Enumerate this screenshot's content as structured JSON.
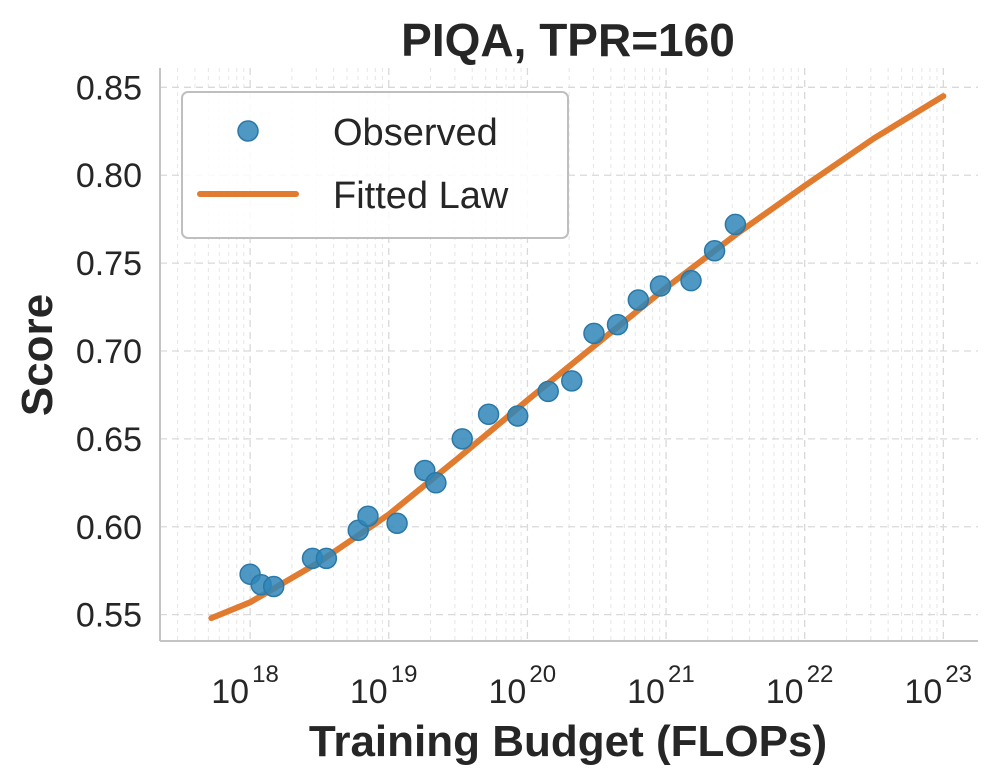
{
  "chart_data": {
    "type": "scatter",
    "title": "PIQA, TPR=160",
    "xlabel": "Training Budget (FLOPs)",
    "ylabel": "Score",
    "xscale": "log",
    "xlim_log10": [
      17.35,
      23.25
    ],
    "ylim": [
      0.535,
      0.861
    ],
    "xticks": [
      {
        "base": "10",
        "exp": "18",
        "log10": 18
      },
      {
        "base": "10",
        "exp": "19",
        "log10": 19
      },
      {
        "base": "10",
        "exp": "20",
        "log10": 20
      },
      {
        "base": "10",
        "exp": "21",
        "log10": 21
      },
      {
        "base": "10",
        "exp": "22",
        "log10": 22
      },
      {
        "base": "10",
        "exp": "23",
        "log10": 23
      }
    ],
    "yticks": [
      {
        "value": 0.55,
        "label": "0.55"
      },
      {
        "value": 0.6,
        "label": "0.60"
      },
      {
        "value": 0.65,
        "label": "0.65"
      },
      {
        "value": 0.7,
        "label": "0.70"
      },
      {
        "value": 0.75,
        "label": "0.75"
      },
      {
        "value": 0.8,
        "label": "0.80"
      },
      {
        "value": 0.85,
        "label": "0.85"
      }
    ],
    "grid": true,
    "legend_position": "top-left",
    "series": [
      {
        "name": "Observed",
        "kind": "scatter",
        "color": "#2f86b8",
        "points": [
          {
            "log10_flops": 18.0,
            "score": 0.573
          },
          {
            "log10_flops": 18.08,
            "score": 0.567
          },
          {
            "log10_flops": 18.17,
            "score": 0.566
          },
          {
            "log10_flops": 18.45,
            "score": 0.582
          },
          {
            "log10_flops": 18.55,
            "score": 0.582
          },
          {
            "log10_flops": 18.78,
            "score": 0.598
          },
          {
            "log10_flops": 18.85,
            "score": 0.606
          },
          {
            "log10_flops": 19.06,
            "score": 0.602
          },
          {
            "log10_flops": 19.26,
            "score": 0.632
          },
          {
            "log10_flops": 19.34,
            "score": 0.625
          },
          {
            "log10_flops": 19.53,
            "score": 0.65
          },
          {
            "log10_flops": 19.72,
            "score": 0.664
          },
          {
            "log10_flops": 19.93,
            "score": 0.663
          },
          {
            "log10_flops": 20.15,
            "score": 0.677
          },
          {
            "log10_flops": 20.32,
            "score": 0.683
          },
          {
            "log10_flops": 20.48,
            "score": 0.71
          },
          {
            "log10_flops": 20.65,
            "score": 0.715
          },
          {
            "log10_flops": 20.8,
            "score": 0.729
          },
          {
            "log10_flops": 20.96,
            "score": 0.737
          },
          {
            "log10_flops": 21.18,
            "score": 0.74
          },
          {
            "log10_flops": 21.35,
            "score": 0.757
          },
          {
            "log10_flops": 21.5,
            "score": 0.772
          }
        ]
      },
      {
        "name": "Fitted Law",
        "kind": "line",
        "color": "#e07b2f",
        "points": [
          {
            "log10_flops": 17.72,
            "score": 0.548
          },
          {
            "log10_flops": 18.0,
            "score": 0.557
          },
          {
            "log10_flops": 18.5,
            "score": 0.58
          },
          {
            "log10_flops": 19.0,
            "score": 0.607
          },
          {
            "log10_flops": 19.5,
            "score": 0.639
          },
          {
            "log10_flops": 20.0,
            "score": 0.672
          },
          {
            "log10_flops": 20.5,
            "score": 0.704
          },
          {
            "log10_flops": 21.0,
            "score": 0.736
          },
          {
            "log10_flops": 21.5,
            "score": 0.766
          },
          {
            "log10_flops": 22.0,
            "score": 0.794
          },
          {
            "log10_flops": 22.5,
            "score": 0.821
          },
          {
            "log10_flops": 23.0,
            "score": 0.845
          }
        ]
      }
    ]
  }
}
